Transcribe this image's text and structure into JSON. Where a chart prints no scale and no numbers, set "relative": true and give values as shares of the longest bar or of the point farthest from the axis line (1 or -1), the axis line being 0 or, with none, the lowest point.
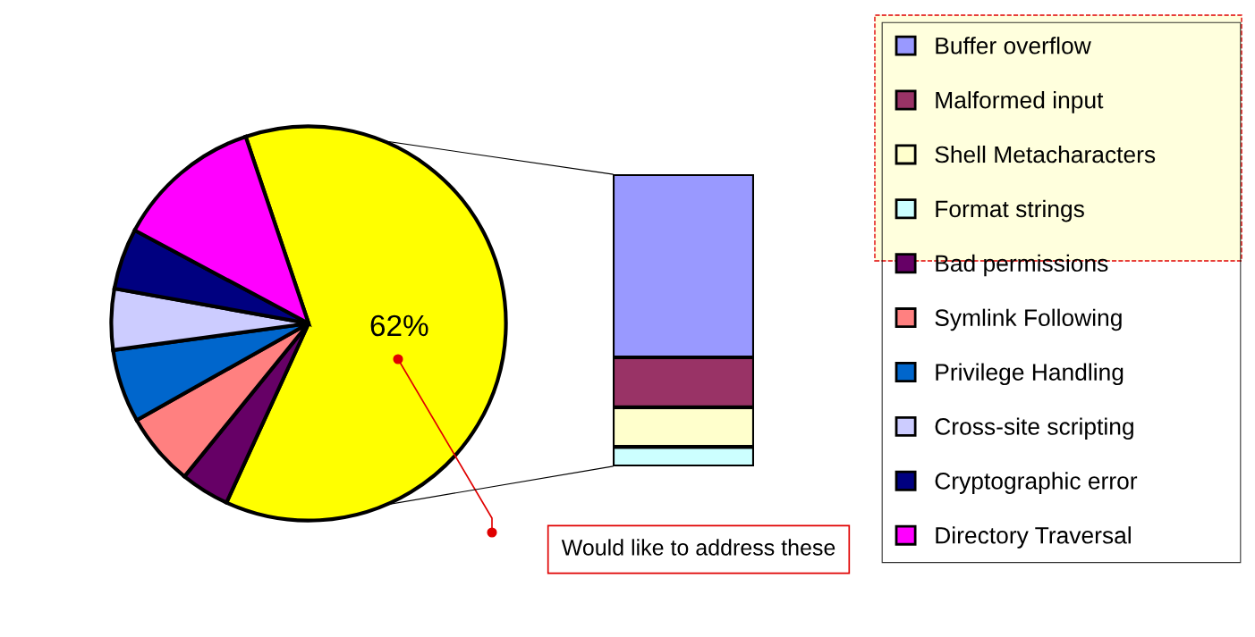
{
  "chart_data": [
    {
      "type": "pie",
      "categories": [
        null,
        "Bad permissions",
        "Symlink Following",
        "Privilege Handling",
        "Cross-site scripting",
        "Cryptographic error",
        "Directory Traversal"
      ],
      "values": [
        62,
        4,
        6,
        6,
        5,
        5,
        12
      ],
      "colors": [
        "#ffff00",
        "#660066",
        "#ff8080",
        "#0066cc",
        "#ccccff",
        "#000080",
        "#ff00ff"
      ],
      "value_labels": [
        "62%",
        null,
        null,
        null,
        null,
        null,
        null
      ],
      "legend": "right",
      "annotations": [
        "Would like to address these"
      ]
    },
    {
      "type": "bar",
      "stacked": true,
      "relative": true,
      "categories": [
        null
      ],
      "legend": "right",
      "series": [
        {
          "name": "Format strings",
          "color": "#ccffff",
          "values": [
            0.067
          ]
        },
        {
          "name": "Shell Metacharacters",
          "color": "#ffffcc",
          "values": [
            0.135
          ]
        },
        {
          "name": "Malformed input",
          "color": "#993366",
          "values": [
            0.171
          ]
        },
        {
          "name": "Buffer overflow",
          "color": "#9999ff",
          "values": [
            0.627
          ]
        }
      ]
    }
  ]
}
